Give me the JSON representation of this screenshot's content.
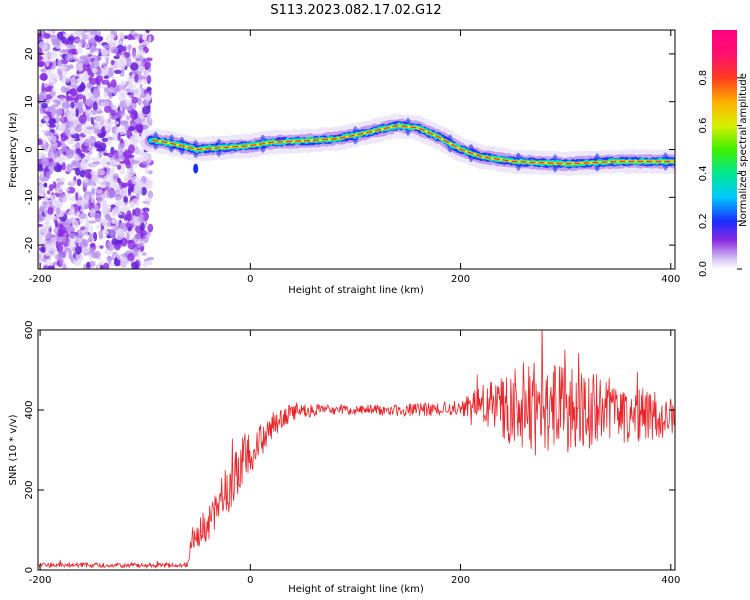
{
  "title": "S113.2023.082.17.02.G12",
  "chart_data": [
    {
      "type": "heatmap",
      "xlabel": "Height of straight line (km)",
      "ylabel": "Frequency (Hz)",
      "xlim": [
        -202,
        404
      ],
      "ylim": [
        -25,
        25
      ],
      "xticks": [
        -200,
        0,
        200,
        400
      ],
      "yticks": [
        -20,
        -10,
        0,
        10,
        20
      ],
      "colorbar": {
        "label": "Normalized spectral amplitude",
        "range": [
          0.0,
          1.0
        ],
        "ticks": [
          0.0,
          0.2,
          0.4,
          0.6,
          0.8
        ]
      },
      "noise_region_x": [
        -202,
        -95
      ],
      "doppler_curve": {
        "x": [
          -95,
          -80,
          -60,
          -50,
          -40,
          -20,
          0,
          20,
          50,
          80,
          100,
          120,
          140,
          160,
          180,
          200,
          220,
          250,
          300,
          350,
          404
        ],
        "y": [
          2,
          1.5,
          0.5,
          0,
          0.2,
          0.5,
          0.8,
          1.5,
          1.8,
          2.2,
          3,
          4,
          5,
          4.5,
          2.5,
          0,
          -1.5,
          -2.5,
          -3,
          -2.5,
          -2.5
        ]
      }
    },
    {
      "type": "line",
      "xlabel": "Height of straight line (km)",
      "ylabel": "SNR (10 * v/v)",
      "xlim": [
        -202,
        404
      ],
      "ylim": [
        0,
        600
      ],
      "xticks": [
        -200,
        0,
        200,
        400
      ],
      "yticks": [
        0,
        200,
        400,
        600
      ],
      "color": "#e8262a",
      "envelope": {
        "x": [
          -202,
          -100,
          -60,
          -55,
          -40,
          -20,
          -5,
          10,
          25,
          40,
          60,
          100,
          150,
          200,
          215,
          230,
          260,
          300,
          350,
          404
        ],
        "y": [
          12,
          12,
          12,
          80,
          120,
          200,
          280,
          330,
          370,
          395,
          400,
          400,
          400,
          405,
          415,
          410,
          405,
          400,
          395,
          380
        ]
      },
      "spread": {
        "x": [
          -202,
          -60,
          -55,
          -20,
          0,
          30,
          60,
          100,
          200,
          215,
          240,
          260,
          300,
          350,
          404
        ],
        "y": [
          6,
          6,
          30,
          70,
          60,
          25,
          15,
          12,
          20,
          40,
          80,
          120,
          110,
          80,
          50
        ]
      }
    }
  ]
}
